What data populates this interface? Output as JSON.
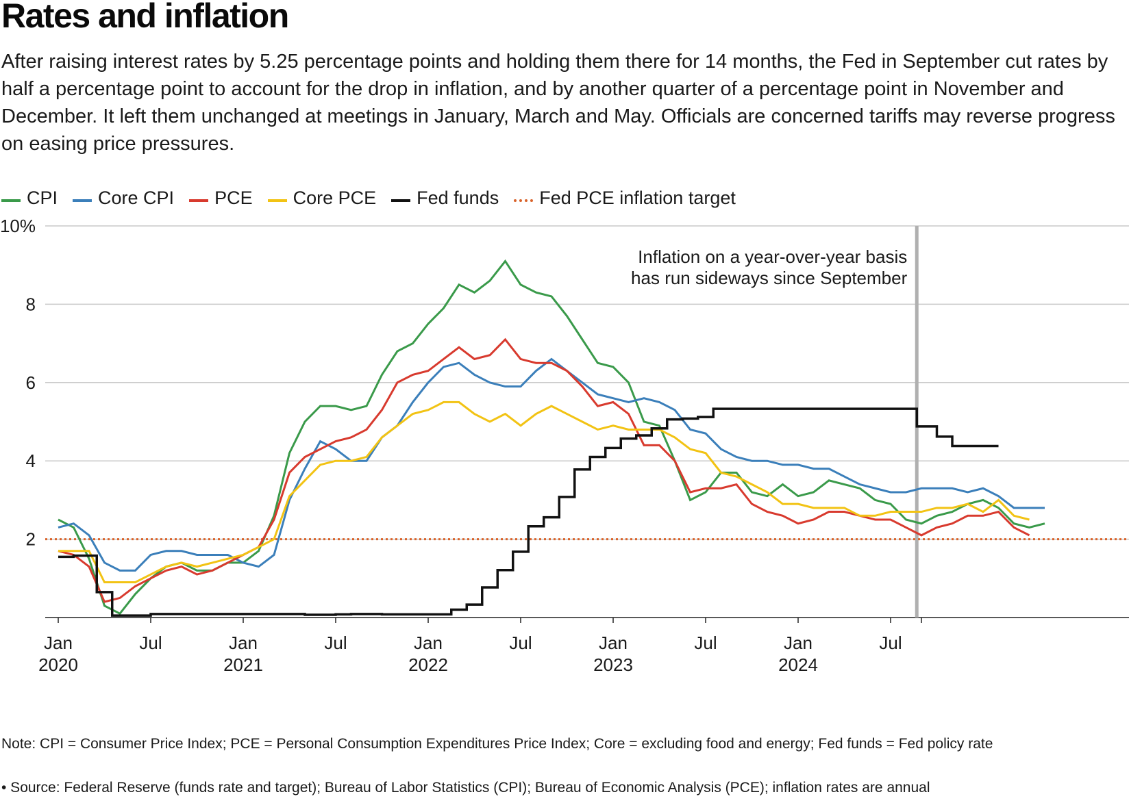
{
  "header": {
    "title": "Rates and inflation",
    "subtitle": "After raising interest rates by 5.25 percentage points and holding them there for 14 months, the Fed in September cut rates by half a percentage point to account for the drop in inflation, and by another quarter of a percentage point in November and December. It left them unchanged at meetings in January, March and May. Officials are concerned tariffs may reverse progress on easing price pressures."
  },
  "footer": {
    "note": "Note: CPI = Consumer Price Index; PCE = Personal Consumption Expenditures Price Index; Core = excluding food and energy; Fed funds = Fed policy rate",
    "source": "• Source: Federal Reserve (funds rate and target); Bureau of Labor Statistics (CPI); Bureau of Economic Analysis (PCE); inflation rates are annual"
  },
  "chart_data": {
    "type": "line",
    "title": "Rates and inflation",
    "xlabel": "",
    "ylabel": "",
    "x_unit": "month index from Jan 2020 (0 = Jan 2020)",
    "ylim": [
      0,
      10
    ],
    "yticks": [
      2,
      4,
      6,
      8,
      10
    ],
    "ytick_labels": [
      "2",
      "4",
      "6",
      "8",
      "10%"
    ],
    "xlim": [
      -0.5,
      60.5
    ],
    "xticks": [
      {
        "m": 0,
        "label": [
          "Jan",
          "2020"
        ]
      },
      {
        "m": 6,
        "label": [
          "Jul",
          ""
        ]
      },
      {
        "m": 12,
        "label": [
          "Jan",
          "2021"
        ]
      },
      {
        "m": 18,
        "label": [
          "Jul",
          ""
        ]
      },
      {
        "m": 24,
        "label": [
          "Jan",
          "2022"
        ]
      },
      {
        "m": 30,
        "label": [
          "Jul",
          ""
        ]
      },
      {
        "m": 36,
        "label": [
          "Jan",
          "2023"
        ]
      },
      {
        "m": 42,
        "label": [
          "Jul",
          ""
        ]
      },
      {
        "m": 48,
        "label": [
          "Jan",
          "2024"
        ]
      },
      {
        "m": 54,
        "label": [
          "Jul",
          ""
        ]
      },
      {
        "m": 56,
        "label": [
          "",
          ""
        ]
      }
    ],
    "grid": true,
    "legend_position": "top-left",
    "annotation": {
      "lines": [
        "Inflation on a year-over-year basis",
        "has run sideways since September"
      ],
      "x": 55.7
    },
    "target": {
      "name": "Fed PCE inflation target",
      "value": 2.0,
      "color": "#d9632b"
    },
    "series": [
      {
        "name": "CPI",
        "color": "#3a9a4a",
        "values": [
          2.5,
          2.3,
          1.5,
          0.3,
          0.1,
          0.6,
          1.0,
          1.3,
          1.4,
          1.2,
          1.2,
          1.4,
          1.4,
          1.7,
          2.6,
          4.2,
          5.0,
          5.4,
          5.4,
          5.3,
          5.4,
          6.2,
          6.8,
          7.0,
          7.5,
          7.9,
          8.5,
          8.3,
          8.6,
          9.1,
          8.5,
          8.3,
          8.2,
          7.7,
          7.1,
          6.5,
          6.4,
          6.0,
          5.0,
          4.9,
          4.0,
          3.0,
          3.2,
          3.7,
          3.7,
          3.2,
          3.1,
          3.4,
          3.1,
          3.2,
          3.5,
          3.4,
          3.3,
          3.0,
          2.9,
          2.5,
          2.4,
          2.6,
          2.7,
          2.9,
          3.0,
          2.8,
          2.4,
          2.3,
          2.4
        ]
      },
      {
        "name": "Core CPI",
        "color": "#3b7fba",
        "values": [
          2.3,
          2.4,
          2.1,
          1.4,
          1.2,
          1.2,
          1.6,
          1.7,
          1.7,
          1.6,
          1.6,
          1.6,
          1.4,
          1.3,
          1.6,
          3.0,
          3.8,
          4.5,
          4.3,
          4.0,
          4.0,
          4.6,
          4.9,
          5.5,
          6.0,
          6.4,
          6.5,
          6.2,
          6.0,
          5.9,
          5.9,
          6.3,
          6.6,
          6.3,
          6.0,
          5.7,
          5.6,
          5.5,
          5.6,
          5.5,
          5.3,
          4.8,
          4.7,
          4.3,
          4.1,
          4.0,
          4.0,
          3.9,
          3.9,
          3.8,
          3.8,
          3.6,
          3.4,
          3.3,
          3.2,
          3.2,
          3.3,
          3.3,
          3.3,
          3.2,
          3.3,
          3.1,
          2.8,
          2.8,
          2.8
        ]
      },
      {
        "name": "PCE",
        "color": "#d83a2e",
        "values": [
          1.7,
          1.6,
          1.3,
          0.4,
          0.5,
          0.8,
          1.0,
          1.2,
          1.3,
          1.1,
          1.2,
          1.4,
          1.6,
          1.8,
          2.5,
          3.7,
          4.1,
          4.3,
          4.5,
          4.6,
          4.8,
          5.3,
          6.0,
          6.2,
          6.3,
          6.6,
          6.9,
          6.6,
          6.7,
          7.1,
          6.6,
          6.5,
          6.5,
          6.3,
          5.9,
          5.4,
          5.5,
          5.2,
          4.4,
          4.4,
          4.0,
          3.2,
          3.3,
          3.3,
          3.4,
          2.9,
          2.7,
          2.6,
          2.4,
          2.5,
          2.7,
          2.7,
          2.6,
          2.5,
          2.5,
          2.3,
          2.1,
          2.3,
          2.4,
          2.6,
          2.6,
          2.7,
          2.3,
          2.1
        ]
      },
      {
        "name": "Core PCE",
        "color": "#f2c314",
        "values": [
          1.7,
          1.7,
          1.7,
          0.9,
          0.9,
          0.9,
          1.1,
          1.3,
          1.4,
          1.3,
          1.4,
          1.5,
          1.6,
          1.8,
          2.0,
          3.1,
          3.5,
          3.9,
          4.0,
          4.0,
          4.1,
          4.6,
          4.9,
          5.2,
          5.3,
          5.5,
          5.5,
          5.2,
          5.0,
          5.2,
          4.9,
          5.2,
          5.4,
          5.2,
          5.0,
          4.8,
          4.9,
          4.8,
          4.8,
          4.8,
          4.6,
          4.3,
          4.2,
          3.7,
          3.6,
          3.4,
          3.2,
          2.9,
          2.9,
          2.8,
          2.8,
          2.8,
          2.6,
          2.6,
          2.7,
          2.7,
          2.7,
          2.8,
          2.8,
          2.9,
          2.7,
          3.0,
          2.6,
          2.5
        ]
      },
      {
        "name": "Fed funds",
        "color": "#111111",
        "step": true,
        "x": [
          0,
          1,
          1.6,
          2.5,
          3.5,
          4.5,
          6,
          7,
          12,
          16,
          17,
          18,
          19,
          21,
          24,
          25.5,
          26.5,
          27.5,
          28.5,
          29.5,
          30.5,
          31.5,
          32.5,
          33.5,
          34.5,
          35.5,
          36.5,
          37.5,
          38.5,
          39.5,
          40.5,
          41.5,
          42.5,
          55.7,
          57,
          58,
          61
        ],
        "values": [
          1.55,
          1.58,
          1.58,
          0.65,
          0.05,
          0.05,
          0.09,
          0.09,
          0.09,
          0.07,
          0.07,
          0.08,
          0.09,
          0.08,
          0.08,
          0.2,
          0.33,
          0.77,
          1.21,
          1.68,
          2.33,
          2.56,
          3.08,
          3.78,
          4.1,
          4.33,
          4.57,
          4.65,
          4.83,
          5.06,
          5.08,
          5.12,
          5.33,
          4.88,
          4.62,
          4.38,
          4.38
        ]
      }
    ]
  }
}
